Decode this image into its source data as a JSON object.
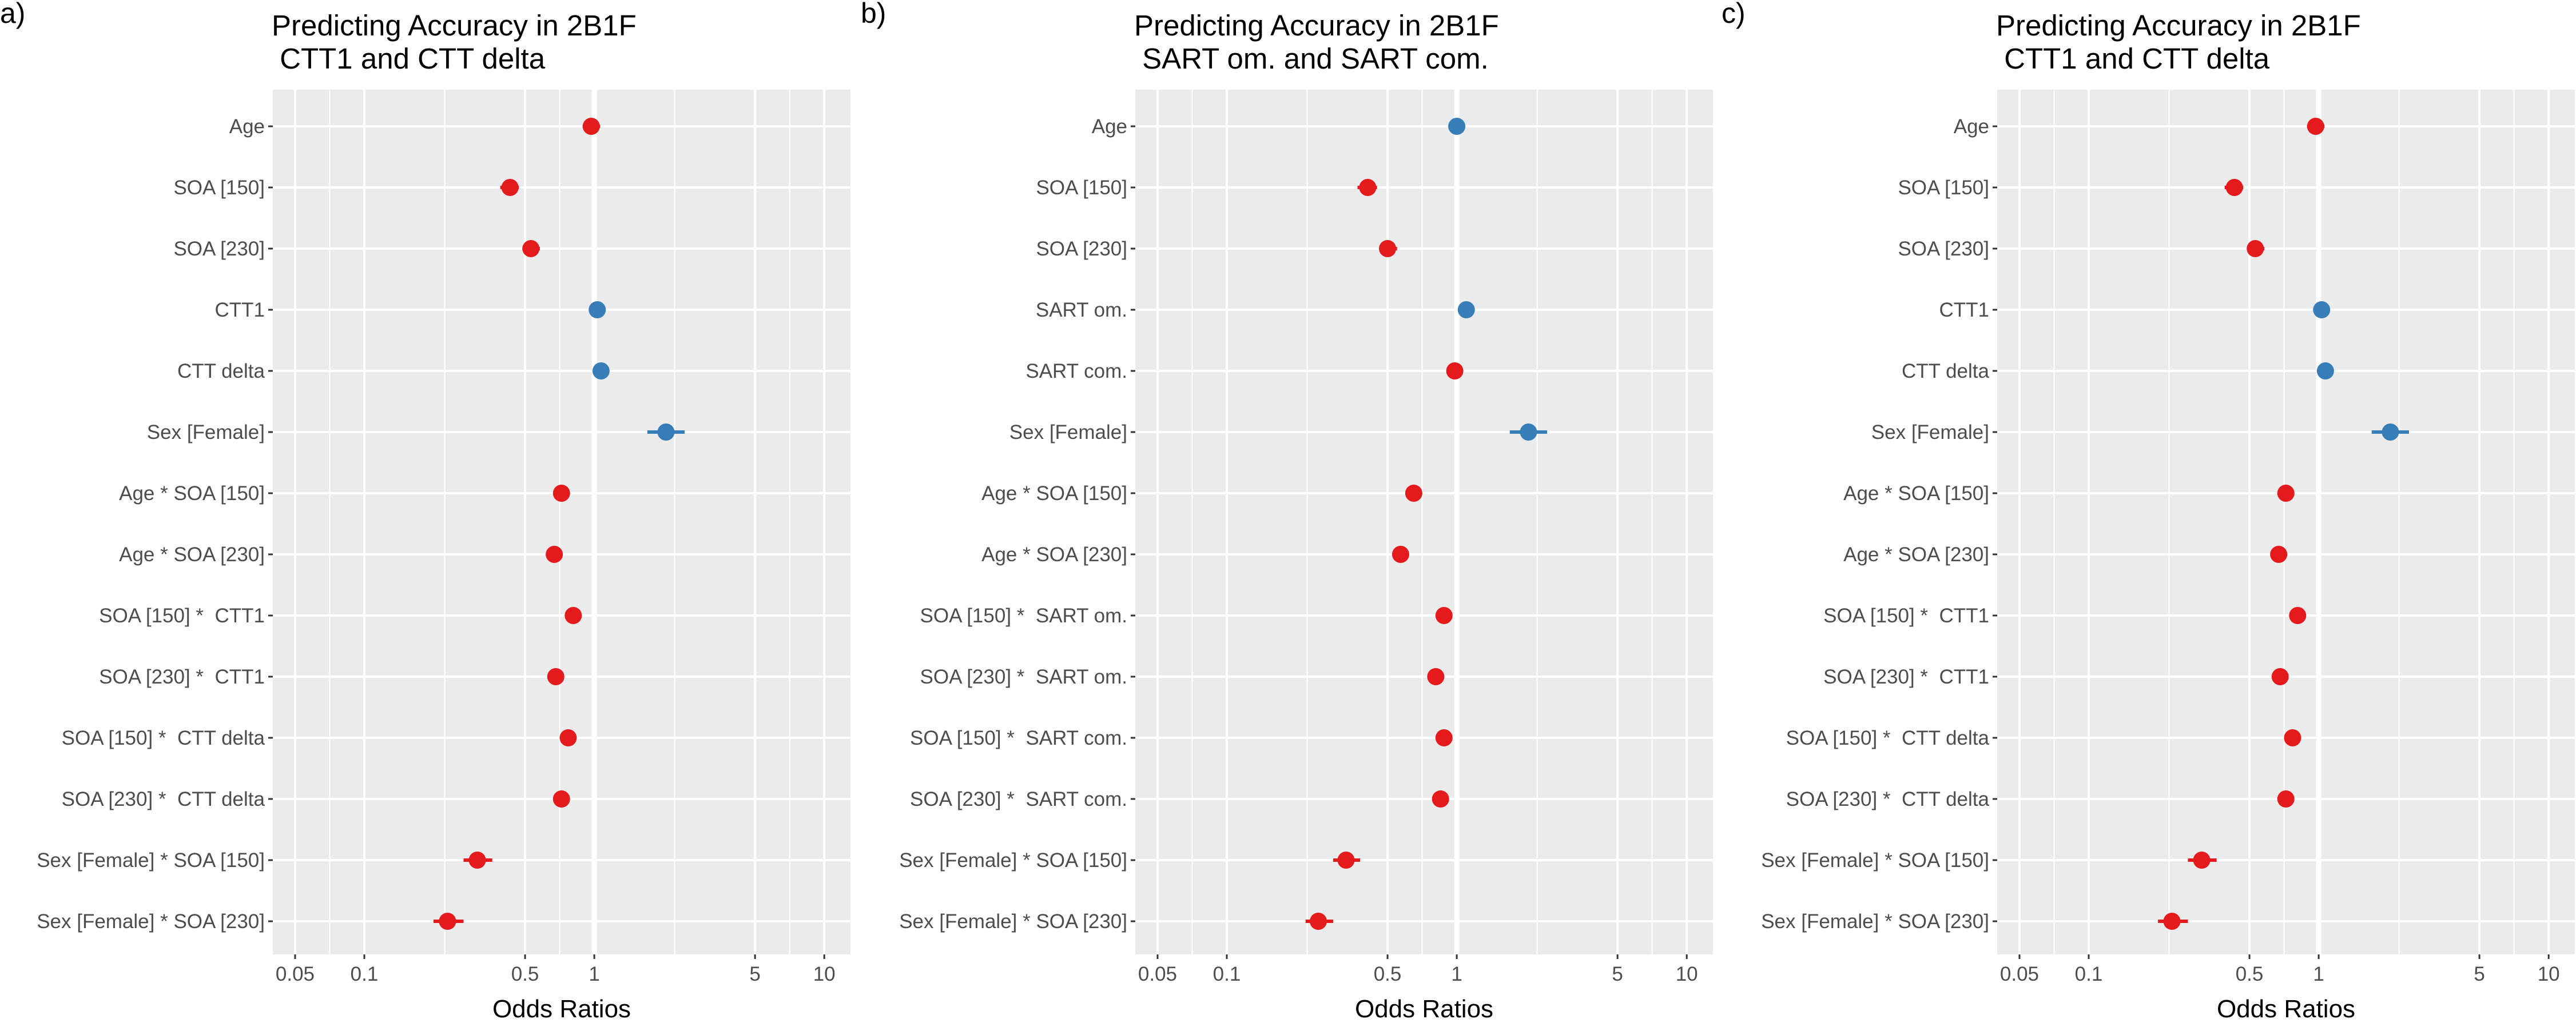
{
  "colors": {
    "negative": "#e41a1c",
    "positive": "#377eb8",
    "panel_background": "#ebebeb",
    "grid_line": "#ffffff",
    "tick_text": "#4d4d4d"
  },
  "chart_data": [
    {
      "type": "forest",
      "panel_letter": "a)",
      "title_lines": [
        "Predicting Accuracy in 2B1F",
        " CTT1 and CTT delta"
      ],
      "xlabel": "Odds Ratios",
      "x_scale": "log",
      "xlim": [
        0.04,
        13
      ],
      "x_ticks": [
        0.05,
        0.1,
        0.5,
        1,
        5,
        10
      ],
      "x_tick_labels": [
        "0.05",
        "0.1",
        "0.5",
        "1",
        "5",
        "10"
      ],
      "reference_line": 1,
      "grid": true,
      "terms": [
        {
          "label": "Age",
          "estimate": 0.97,
          "lo": 0.89,
          "hi": 1.06
        },
        {
          "label": "SOA [150]",
          "estimate": 0.43,
          "lo": 0.39,
          "hi": 0.47
        },
        {
          "label": "SOA [230]",
          "estimate": 0.53,
          "lo": 0.49,
          "hi": 0.58
        },
        {
          "label": "CTT1",
          "estimate": 1.03,
          "lo": 0.97,
          "hi": 1.1
        },
        {
          "label": "CTT delta",
          "estimate": 1.07,
          "lo": 1.01,
          "hi": 1.13
        },
        {
          "label": "Sex [Female]",
          "estimate": 2.05,
          "lo": 1.7,
          "hi": 2.47
        },
        {
          "label": "Age * SOA [150]",
          "estimate": 0.72,
          "lo": 0.68,
          "hi": 0.76
        },
        {
          "label": "Age * SOA [230]",
          "estimate": 0.67,
          "lo": 0.63,
          "hi": 0.71
        },
        {
          "label": "SOA [150] *  CTT1",
          "estimate": 0.81,
          "lo": 0.77,
          "hi": 0.85
        },
        {
          "label": "SOA [230] *  CTT1",
          "estimate": 0.68,
          "lo": 0.64,
          "hi": 0.72
        },
        {
          "label": "SOA [150] *  CTT delta",
          "estimate": 0.77,
          "lo": 0.73,
          "hi": 0.81
        },
        {
          "label": "SOA [230] *  CTT delta",
          "estimate": 0.72,
          "lo": 0.68,
          "hi": 0.76
        },
        {
          "label": "Sex [Female] * SOA [150]",
          "estimate": 0.31,
          "lo": 0.27,
          "hi": 0.36
        },
        {
          "label": "Sex [Female] * SOA [230]",
          "estimate": 0.23,
          "lo": 0.2,
          "hi": 0.27
        }
      ]
    },
    {
      "type": "forest",
      "panel_letter": "b)",
      "title_lines": [
        "Predicting Accuracy in 2B1F",
        " SART om. and SART com."
      ],
      "xlabel": "Odds Ratios",
      "x_scale": "log",
      "xlim": [
        0.04,
        13
      ],
      "x_ticks": [
        0.05,
        0.1,
        0.5,
        1,
        5,
        10
      ],
      "x_tick_labels": [
        "0.05",
        "0.1",
        "0.5",
        "1",
        "5",
        "10"
      ],
      "reference_line": 1,
      "grid": true,
      "terms": [
        {
          "label": "Age",
          "estimate": 1.0,
          "lo": 0.93,
          "hi": 1.08
        },
        {
          "label": "SOA [150]",
          "estimate": 0.41,
          "lo": 0.37,
          "hi": 0.45
        },
        {
          "label": "SOA [230]",
          "estimate": 0.5,
          "lo": 0.46,
          "hi": 0.55
        },
        {
          "label": "SART om.",
          "estimate": 1.1,
          "lo": 1.02,
          "hi": 1.19
        },
        {
          "label": "SART com.",
          "estimate": 0.98,
          "lo": 0.91,
          "hi": 1.05
        },
        {
          "label": "Sex [Female]",
          "estimate": 2.05,
          "lo": 1.7,
          "hi": 2.47
        },
        {
          "label": "Age * SOA [150]",
          "estimate": 0.65,
          "lo": 0.61,
          "hi": 0.69
        },
        {
          "label": "Age * SOA [230]",
          "estimate": 0.57,
          "lo": 0.54,
          "hi": 0.6
        },
        {
          "label": "SOA [150] *  SART om.",
          "estimate": 0.88,
          "lo": 0.84,
          "hi": 0.92
        },
        {
          "label": "SOA [230] *  SART om.",
          "estimate": 0.81,
          "lo": 0.77,
          "hi": 0.86
        },
        {
          "label": "SOA [150] *  SART com.",
          "estimate": 0.88,
          "lo": 0.84,
          "hi": 0.92
        },
        {
          "label": "SOA [230] *  SART com.",
          "estimate": 0.85,
          "lo": 0.81,
          "hi": 0.9
        },
        {
          "label": "Sex [Female] * SOA [150]",
          "estimate": 0.33,
          "lo": 0.29,
          "hi": 0.38
        },
        {
          "label": "Sex [Female] * SOA [230]",
          "estimate": 0.25,
          "lo": 0.22,
          "hi": 0.29
        }
      ]
    },
    {
      "type": "forest",
      "panel_letter": "c)",
      "title_lines": [
        "Predicting Accuracy in 2B1F",
        " CTT1 and CTT delta"
      ],
      "xlabel": "Odds Ratios",
      "x_scale": "log",
      "xlim": [
        0.04,
        13
      ],
      "x_ticks": [
        0.05,
        0.1,
        0.5,
        1,
        5,
        10
      ],
      "x_tick_labels": [
        "0.05",
        "0.1",
        "0.5",
        "1",
        "5",
        "10"
      ],
      "reference_line": 1,
      "grid": true,
      "terms": [
        {
          "label": "Age",
          "estimate": 0.97,
          "lo": 0.89,
          "hi": 1.06
        },
        {
          "label": "SOA [150]",
          "estimate": 0.43,
          "lo": 0.39,
          "hi": 0.47
        },
        {
          "label": "SOA [230]",
          "estimate": 0.53,
          "lo": 0.49,
          "hi": 0.58
        },
        {
          "label": "CTT1",
          "estimate": 1.03,
          "lo": 0.97,
          "hi": 1.1
        },
        {
          "label": "CTT delta",
          "estimate": 1.07,
          "lo": 1.01,
          "hi": 1.13
        },
        {
          "label": "Sex [Female]",
          "estimate": 2.05,
          "lo": 1.7,
          "hi": 2.47
        },
        {
          "label": "Age * SOA [150]",
          "estimate": 0.72,
          "lo": 0.68,
          "hi": 0.76
        },
        {
          "label": "Age * SOA [230]",
          "estimate": 0.67,
          "lo": 0.63,
          "hi": 0.71
        },
        {
          "label": "SOA [150] *  CTT1",
          "estimate": 0.81,
          "lo": 0.77,
          "hi": 0.85
        },
        {
          "label": "SOA [230] *  CTT1",
          "estimate": 0.68,
          "lo": 0.64,
          "hi": 0.72
        },
        {
          "label": "SOA [150] *  CTT delta",
          "estimate": 0.77,
          "lo": 0.73,
          "hi": 0.81
        },
        {
          "label": "SOA [230] *  CTT delta",
          "estimate": 0.72,
          "lo": 0.68,
          "hi": 0.76
        },
        {
          "label": "Sex [Female] * SOA [150]",
          "estimate": 0.31,
          "lo": 0.27,
          "hi": 0.36
        },
        {
          "label": "Sex [Female] * SOA [230]",
          "estimate": 0.23,
          "lo": 0.2,
          "hi": 0.27
        }
      ]
    }
  ]
}
